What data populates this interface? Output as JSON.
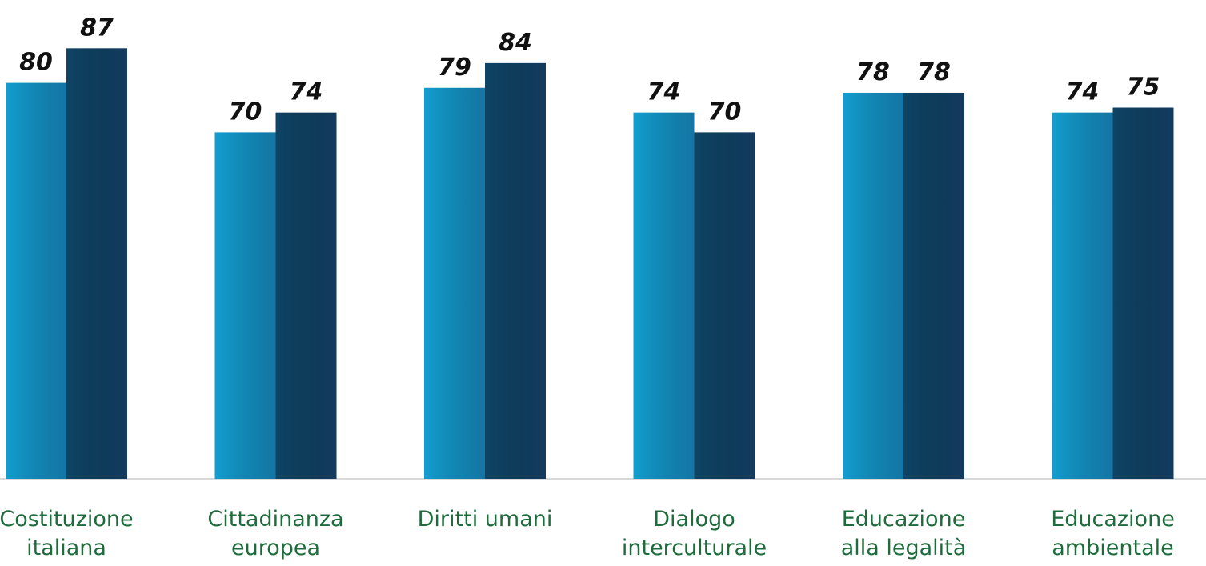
{
  "chart_data": {
    "type": "bar",
    "categories": [
      [
        "Costituzione",
        "italiana"
      ],
      [
        "Cittadinanza",
        "europea"
      ],
      [
        "Diritti umani"
      ],
      [
        "Dialogo",
        "interculturale"
      ],
      [
        "Educazione",
        "alla legalità"
      ],
      [
        "Educazione",
        "ambientale"
      ]
    ],
    "series": [
      {
        "color": "#139ed0",
        "values": [
          80,
          70,
          79,
          74,
          78,
          74
        ]
      },
      {
        "color": "#0f4465",
        "values": [
          87,
          74,
          84,
          70,
          78,
          75
        ]
      }
    ]
  }
}
